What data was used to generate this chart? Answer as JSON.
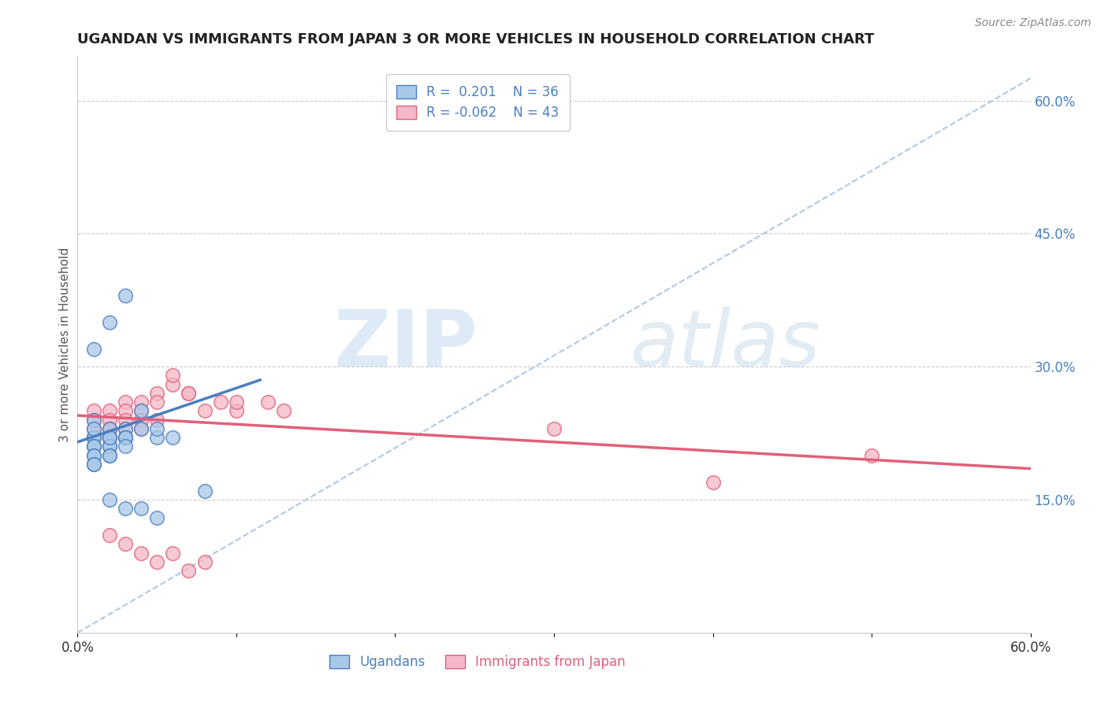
{
  "title": "UGANDAN VS IMMIGRANTS FROM JAPAN 3 OR MORE VEHICLES IN HOUSEHOLD CORRELATION CHART",
  "source_text": "Source: ZipAtlas.com",
  "ylabel": "3 or more Vehicles in Household",
  "xlim": [
    0.0,
    0.6
  ],
  "ylim": [
    0.0,
    0.65
  ],
  "y_tick_values_right": [
    0.15,
    0.3,
    0.45,
    0.6
  ],
  "y_tick_labels_right": [
    "15.0%",
    "30.0%",
    "45.0%",
    "60.0%"
  ],
  "color_ugandan": "#a8c8e8",
  "color_japan": "#f5b8c8",
  "color_line_ugandan": "#4a7fc0",
  "color_line_japan": "#e0607a",
  "color_trend_dashed": "#b0c8e0",
  "background_color": "#ffffff",
  "ugandan_x": [
    0.01,
    0.01,
    0.01,
    0.01,
    0.01,
    0.01,
    0.01,
    0.01,
    0.01,
    0.01,
    0.02,
    0.02,
    0.02,
    0.02,
    0.02,
    0.02,
    0.02,
    0.02,
    0.03,
    0.03,
    0.03,
    0.03,
    0.03,
    0.04,
    0.04,
    0.05,
    0.05,
    0.06,
    0.01,
    0.02,
    0.03,
    0.02,
    0.03,
    0.04,
    0.05,
    0.08
  ],
  "ugandan_y": [
    0.24,
    0.22,
    0.22,
    0.23,
    0.21,
    0.21,
    0.2,
    0.2,
    0.19,
    0.19,
    0.23,
    0.22,
    0.22,
    0.21,
    0.21,
    0.22,
    0.2,
    0.2,
    0.23,
    0.22,
    0.22,
    0.22,
    0.21,
    0.23,
    0.25,
    0.22,
    0.23,
    0.22,
    0.32,
    0.35,
    0.38,
    0.15,
    0.14,
    0.14,
    0.13,
    0.16
  ],
  "japan_x": [
    0.01,
    0.01,
    0.01,
    0.01,
    0.01,
    0.01,
    0.02,
    0.02,
    0.02,
    0.02,
    0.02,
    0.02,
    0.03,
    0.03,
    0.03,
    0.03,
    0.04,
    0.04,
    0.04,
    0.04,
    0.05,
    0.05,
    0.05,
    0.06,
    0.06,
    0.07,
    0.07,
    0.08,
    0.09,
    0.1,
    0.1,
    0.12,
    0.13,
    0.3,
    0.4,
    0.5,
    0.02,
    0.03,
    0.04,
    0.05,
    0.06,
    0.07,
    0.08
  ],
  "japan_y": [
    0.25,
    0.24,
    0.23,
    0.22,
    0.22,
    0.21,
    0.25,
    0.24,
    0.23,
    0.23,
    0.22,
    0.22,
    0.26,
    0.25,
    0.24,
    0.23,
    0.26,
    0.25,
    0.24,
    0.23,
    0.27,
    0.26,
    0.24,
    0.28,
    0.29,
    0.27,
    0.27,
    0.25,
    0.26,
    0.25,
    0.26,
    0.26,
    0.25,
    0.23,
    0.17,
    0.2,
    0.11,
    0.1,
    0.09,
    0.08,
    0.09,
    0.07,
    0.08
  ],
  "blue_line_x0": 0.0,
  "blue_line_y0": 0.215,
  "blue_line_x1": 0.115,
  "blue_line_y1": 0.285,
  "pink_line_x0": 0.0,
  "pink_line_y0": 0.245,
  "pink_line_x1": 0.6,
  "pink_line_y1": 0.185,
  "dash_line_x0": 0.0,
  "dash_line_y0": 0.0,
  "dash_line_x1": 0.6,
  "dash_line_y1": 0.625
}
